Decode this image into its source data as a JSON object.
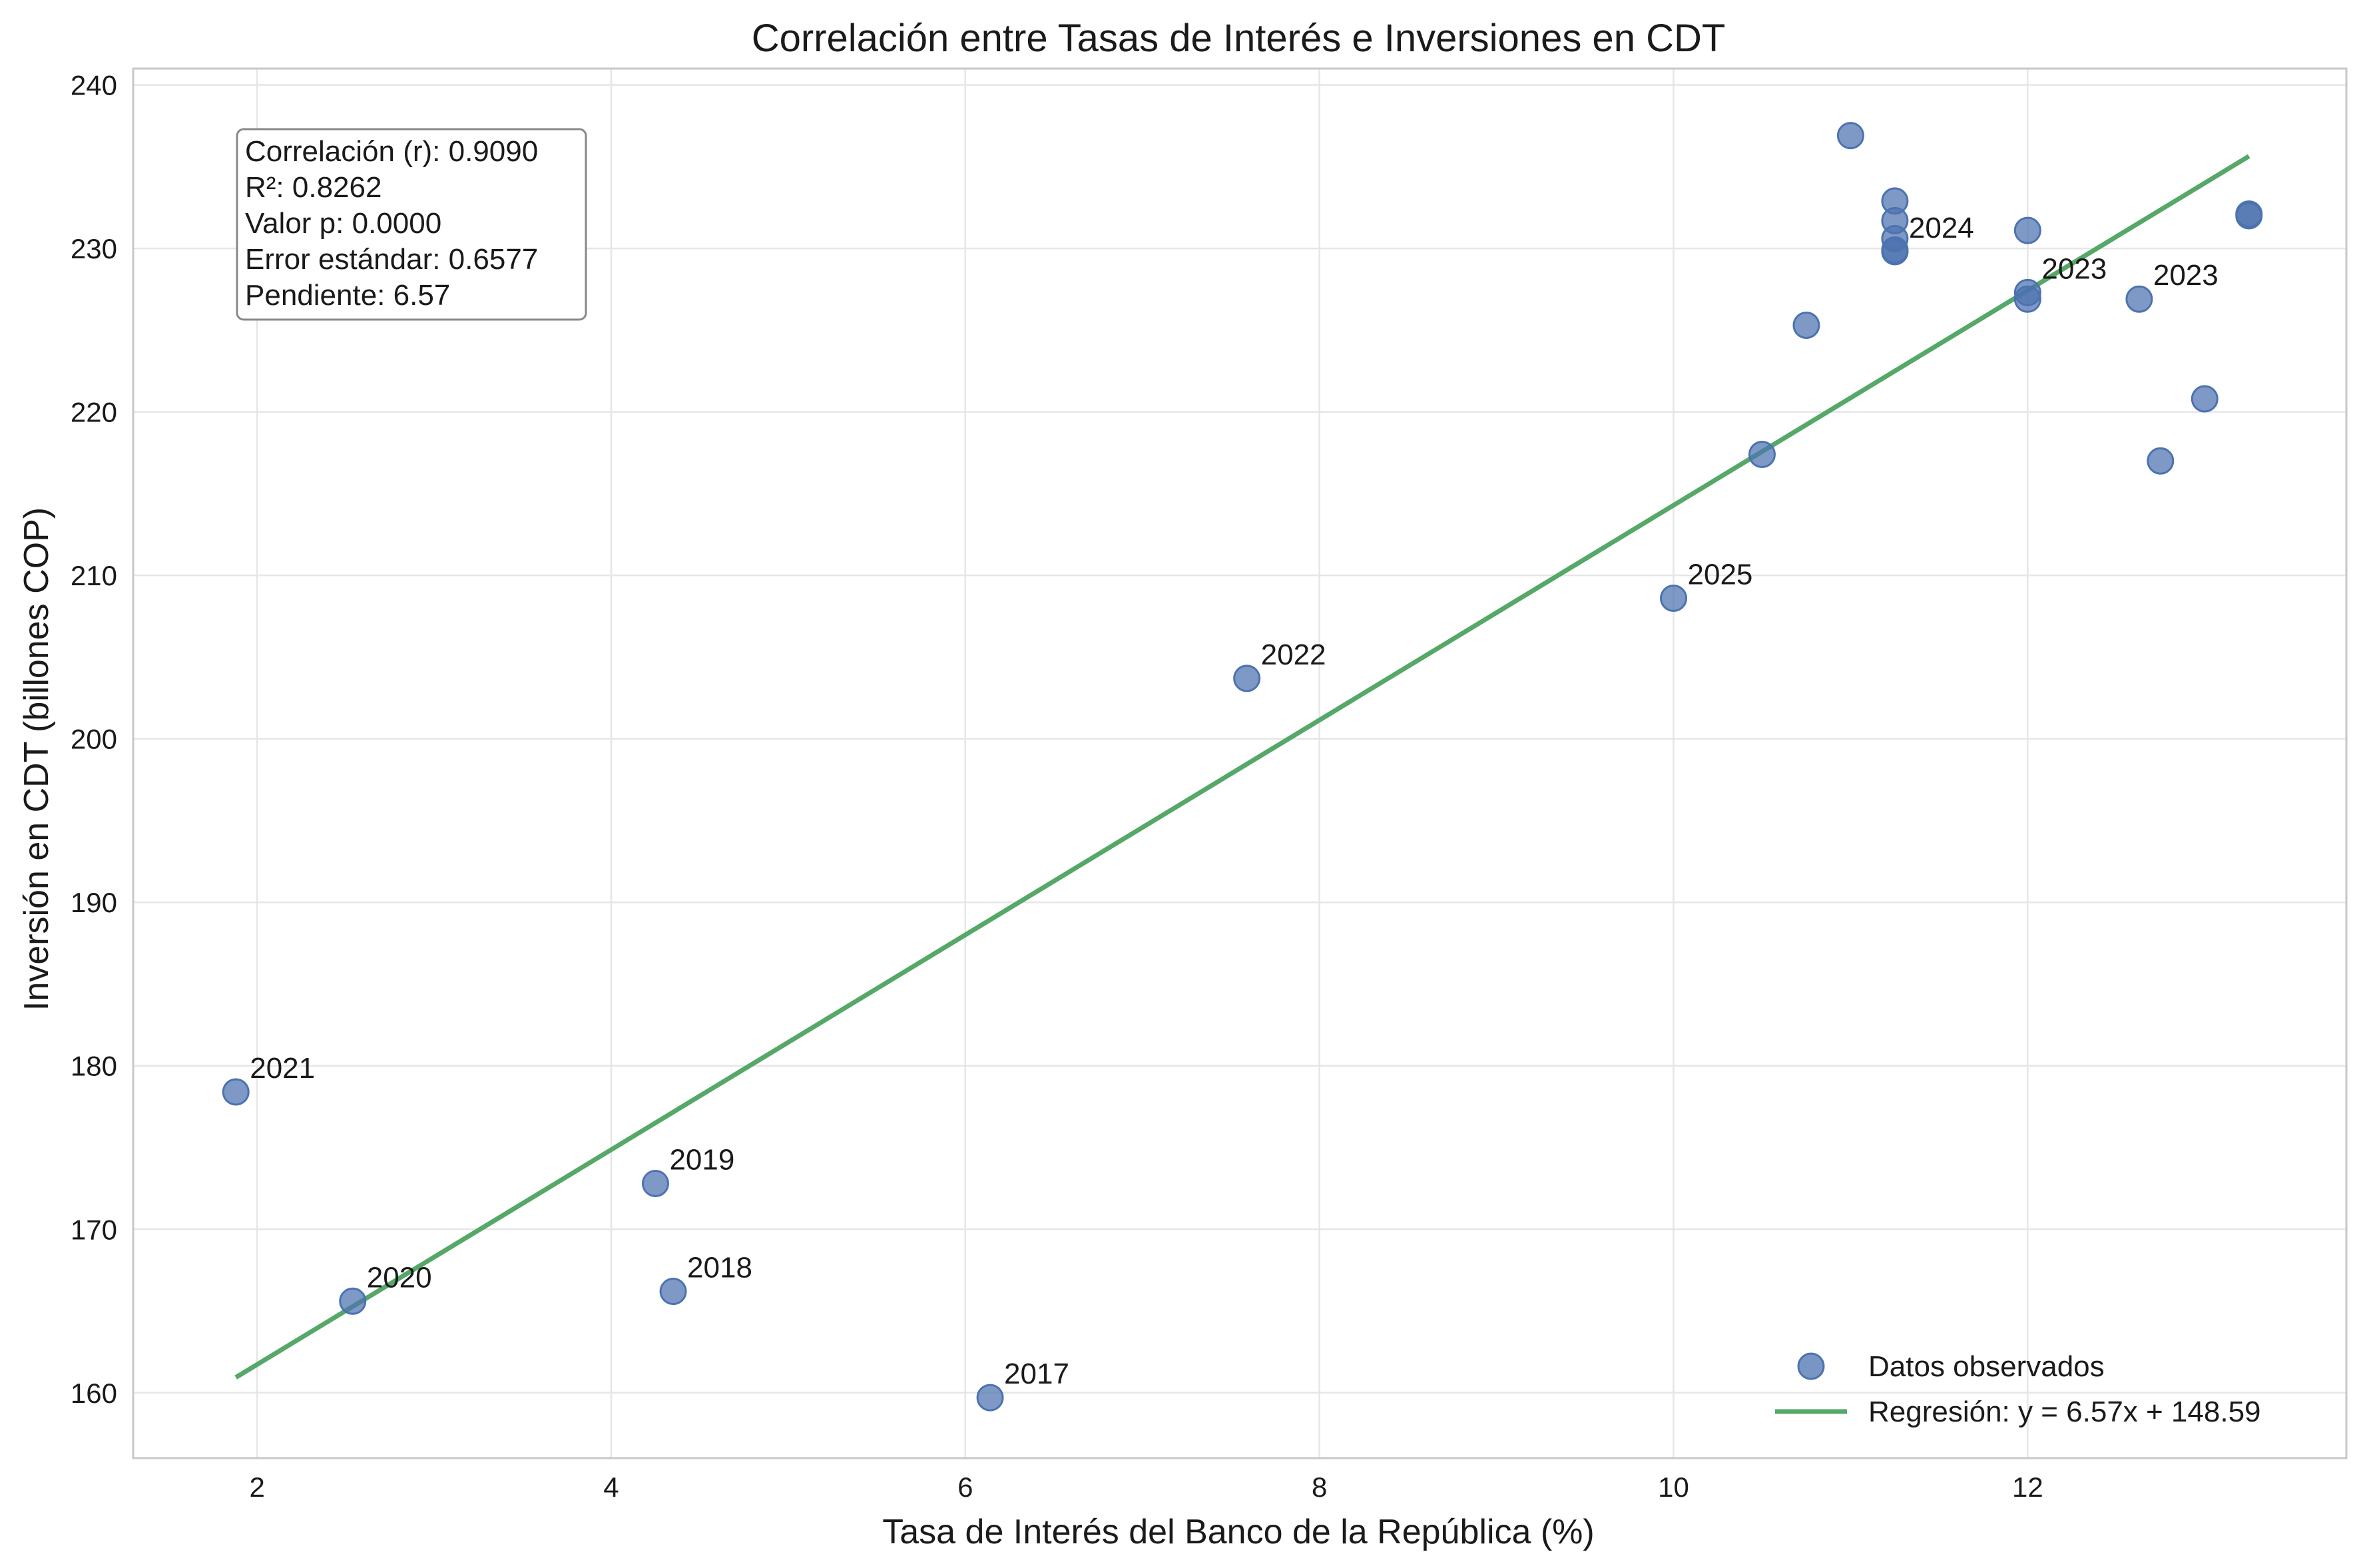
{
  "chart_data": {
    "type": "scatter",
    "title": "Correlación entre Tasas de Interés e Inversiones en CDT",
    "xlabel": "Tasa de Interés del Banco de la República (%)",
    "ylabel": "Inversión en CDT (billones COP)",
    "xlim": [
      1.3,
      13.8
    ],
    "ylim": [
      156,
      241
    ],
    "x_ticks": [
      2,
      4,
      6,
      8,
      10,
      12
    ],
    "y_ticks": [
      160,
      170,
      180,
      190,
      200,
      210,
      220,
      230,
      240
    ],
    "grid": true,
    "legend_position": "bottom-right",
    "colors": {
      "points": "#4c72b0",
      "regression": "#55a868"
    },
    "series": [
      {
        "name": "Datos observados",
        "kind": "scatter",
        "points": [
          {
            "x": 1.88,
            "y": 178.4,
            "label": "2021"
          },
          {
            "x": 2.54,
            "y": 165.6,
            "label": "2020"
          },
          {
            "x": 4.25,
            "y": 172.8,
            "label": "2019"
          },
          {
            "x": 4.35,
            "y": 166.2,
            "label": "2018"
          },
          {
            "x": 6.14,
            "y": 159.7,
            "label": "2017"
          },
          {
            "x": 7.59,
            "y": 203.7,
            "label": "2022"
          },
          {
            "x": 10.0,
            "y": 208.6,
            "label": "2025"
          },
          {
            "x": 10.5,
            "y": 217.4,
            "label": ""
          },
          {
            "x": 10.75,
            "y": 225.3,
            "label": ""
          },
          {
            "x": 11.0,
            "y": 236.9,
            "label": ""
          },
          {
            "x": 11.25,
            "y": 232.9,
            "label": ""
          },
          {
            "x": 11.25,
            "y": 231.7,
            "label": ""
          },
          {
            "x": 11.25,
            "y": 230.6,
            "label": ""
          },
          {
            "x": 11.25,
            "y": 229.9,
            "label": ""
          },
          {
            "x": 11.25,
            "y": 229.8,
            "label": "2024"
          },
          {
            "x": 12.0,
            "y": 231.1,
            "label": ""
          },
          {
            "x": 12.0,
            "y": 227.3,
            "label": "2023"
          },
          {
            "x": 12.0,
            "y": 226.9,
            "label": ""
          },
          {
            "x": 12.63,
            "y": 226.9,
            "label": "2023"
          },
          {
            "x": 12.75,
            "y": 217.0,
            "label": ""
          },
          {
            "x": 13.0,
            "y": 220.8,
            "label": ""
          },
          {
            "x": 13.25,
            "y": 232.0,
            "label": ""
          },
          {
            "x": 13.25,
            "y": 232.1,
            "label": ""
          }
        ]
      },
      {
        "name": "Regresión: y = 6.57x + 148.59",
        "kind": "line",
        "x": [
          1.88,
          13.25
        ],
        "y": [
          160.94,
          235.64
        ]
      }
    ],
    "stats_box": [
      "Correlación (r): 0.9090",
      "R²: 0.8262",
      "Valor p: 0.0000",
      "Error estándar: 0.6577",
      "Pendiente: 6.57"
    ]
  }
}
